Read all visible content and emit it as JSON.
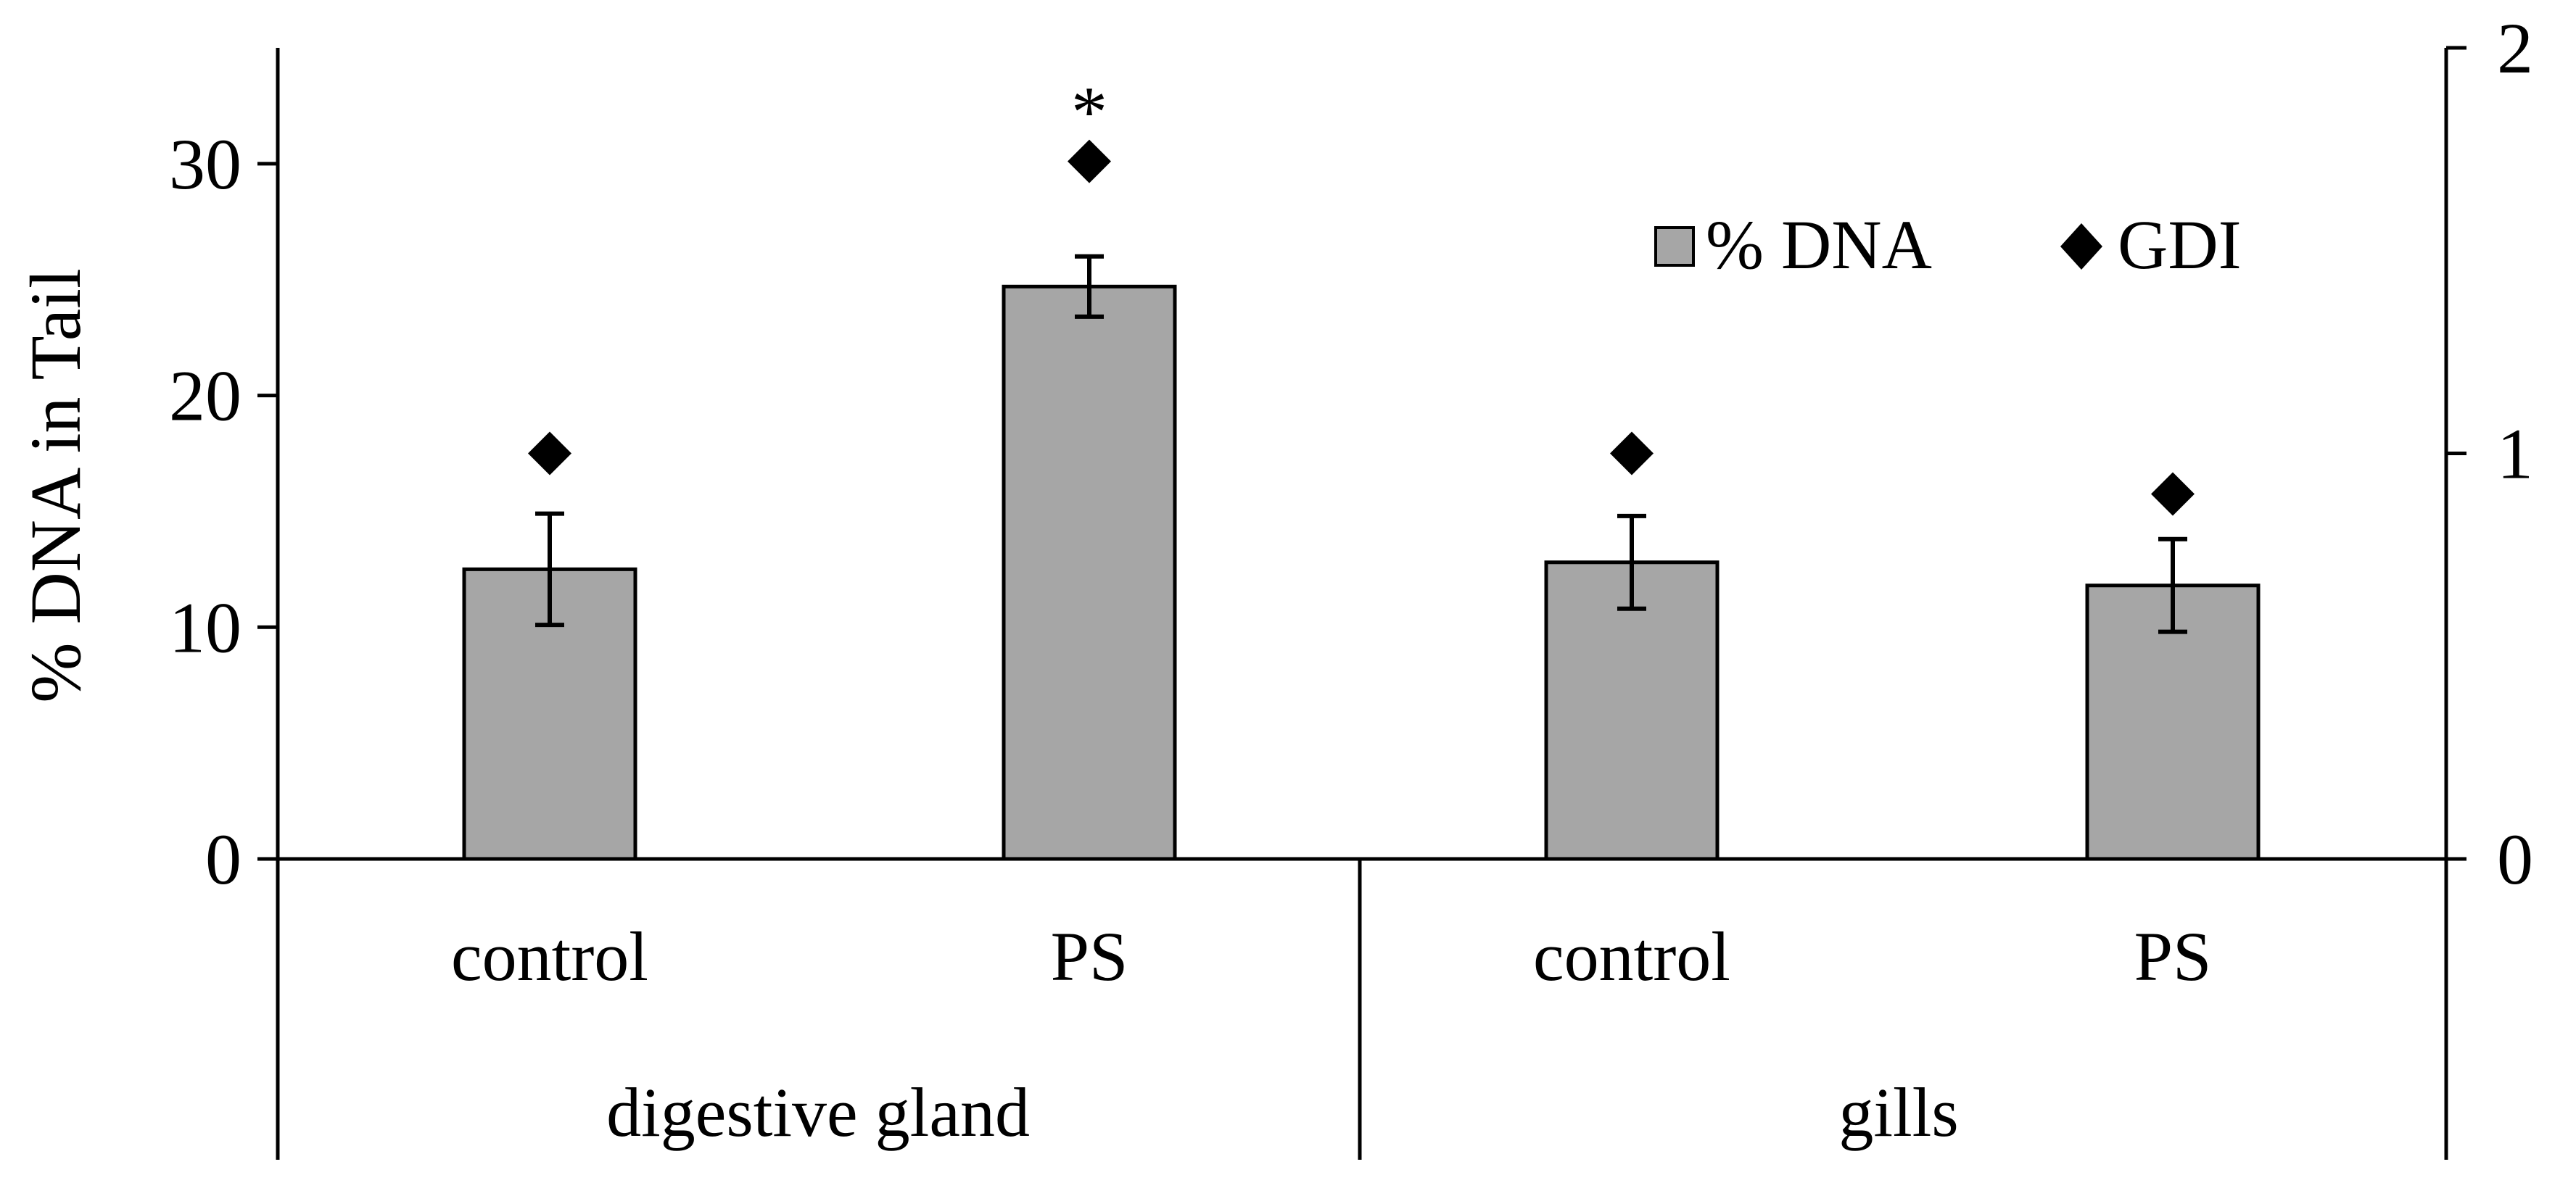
{
  "chart_data": {
    "type": "bar",
    "title": "",
    "ylabel": "% DNA in Tail",
    "ylim": [
      0,
      35
    ],
    "yticks": [
      0,
      10,
      20,
      30
    ],
    "y2lim": [
      0,
      2
    ],
    "y2ticks": [
      0,
      1,
      2
    ],
    "groups": [
      {
        "label": "digestive gland",
        "categories": [
          "control",
          "PS"
        ]
      },
      {
        "label": "gills",
        "categories": [
          "control",
          "PS"
        ]
      }
    ],
    "series": [
      {
        "name": "% DNA",
        "type": "bar",
        "axis": "left",
        "color": "#a6a6a6",
        "values": [
          12.5,
          24.7,
          12.8,
          11.8
        ],
        "errors": [
          2.4,
          1.3,
          2.0,
          2.0
        ]
      },
      {
        "name": "GDI",
        "type": "marker",
        "marker": "diamond",
        "axis": "right",
        "color": "#000000",
        "values": [
          1.0,
          1.72,
          1.0,
          0.9
        ]
      }
    ],
    "annotations": [
      {
        "text": "*",
        "bar_index": 1
      }
    ],
    "legend": {
      "position": "top-right",
      "entries": [
        "% DNA",
        "GDI"
      ]
    }
  }
}
